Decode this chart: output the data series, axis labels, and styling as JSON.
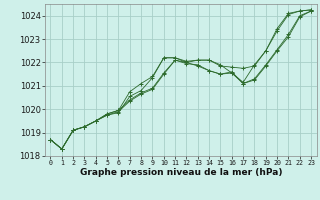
{
  "xlabel": "Graphe pression niveau de la mer (hPa)",
  "ylabel": "",
  "background_color": "#cff0ea",
  "plot_bg_color": "#cff0ea",
  "grid_color": "#a8cfc8",
  "line_color": "#2d6b2d",
  "ylim": [
    1018.0,
    1024.5
  ],
  "xlim": [
    -0.5,
    23.5
  ],
  "yticks": [
    1018,
    1019,
    1020,
    1021,
    1022,
    1023,
    1024
  ],
  "xticks": [
    0,
    1,
    2,
    3,
    4,
    5,
    6,
    7,
    8,
    9,
    10,
    11,
    12,
    13,
    14,
    15,
    16,
    17,
    18,
    19,
    20,
    21,
    22,
    23
  ],
  "series": [
    [
      1018.7,
      1018.3,
      1019.1,
      1019.25,
      1019.5,
      1019.75,
      1019.85,
      1020.55,
      1020.8,
      1021.35,
      1022.2,
      1022.2,
      1022.0,
      1022.1,
      1022.1,
      1021.85,
      1021.8,
      1021.75,
      1021.85,
      1022.5,
      1023.35,
      1024.05,
      1024.2,
      1024.25
    ],
    [
      1018.7,
      1018.3,
      1019.1,
      1019.25,
      1019.5,
      1019.75,
      1019.9,
      1020.35,
      1020.65,
      1020.85,
      1021.5,
      1022.1,
      1022.0,
      1021.85,
      1021.65,
      1021.5,
      1021.55,
      1021.1,
      1021.25,
      1021.85,
      1022.5,
      1023.1,
      1023.95,
      1024.2
    ],
    [
      1018.7,
      1018.3,
      1019.1,
      1019.25,
      1019.5,
      1019.8,
      1019.95,
      1020.75,
      1021.1,
      1021.4,
      1022.2,
      1022.2,
      1022.05,
      1022.1,
      1022.1,
      1021.9,
      1021.55,
      1021.15,
      1021.9,
      1022.5,
      1023.45,
      1024.1,
      1024.2,
      1024.25
    ],
    [
      1018.7,
      1018.3,
      1019.1,
      1019.25,
      1019.5,
      1019.8,
      1019.95,
      1020.4,
      1020.7,
      1020.9,
      1021.55,
      1022.1,
      1021.95,
      1021.9,
      1021.65,
      1021.5,
      1021.6,
      1021.1,
      1021.3,
      1021.9,
      1022.55,
      1023.2,
      1024.0,
      1024.2
    ]
  ]
}
